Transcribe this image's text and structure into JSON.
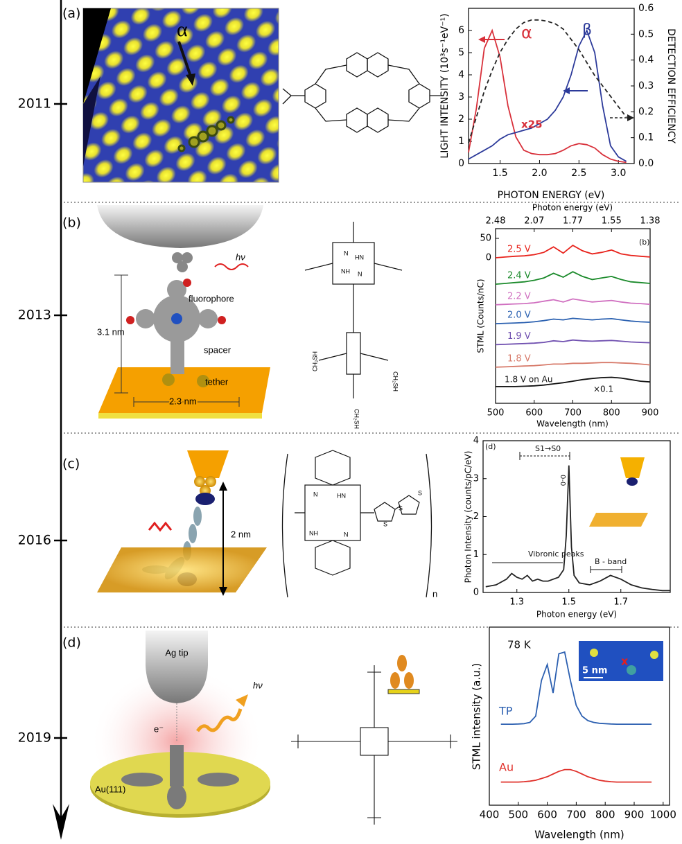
{
  "timeline": {
    "years": [
      "2011",
      "2013",
      "2016",
      "2019"
    ]
  },
  "panels": [
    {
      "label": "(a)",
      "texts": [
        "α"
      ]
    },
    {
      "label": "(b)",
      "texts": [
        "hν",
        "fluorophore",
        "spacer",
        "tether",
        "3.1 nm",
        "2.3 nm"
      ],
      "atoms": [
        "N",
        "HN",
        "NH",
        "N",
        "CH₂SH",
        "CH₂SH",
        "CH₂SH"
      ]
    },
    {
      "label": "(c)",
      "texts": [
        "2 nm",
        "n"
      ],
      "atoms": [
        "N",
        "HN",
        "NH",
        "N",
        "S",
        "S",
        "S"
      ]
    },
    {
      "label": "(d)",
      "texts": [
        "Ag tip",
        "e⁻",
        "hν",
        "Au(111)"
      ]
    }
  ],
  "chart_data": [
    {
      "type": "line",
      "xlabel": "PHOTON ENERGY (eV)",
      "ylabel": "LIGHT INTENSITY (10³s⁻¹eV⁻¹)",
      "y2label": "DETECTION EFFICIENCY",
      "x": [
        1.1,
        1.2,
        1.3,
        1.4,
        1.5,
        1.6,
        1.7,
        1.8,
        1.9,
        2.0,
        2.1,
        2.2,
        2.3,
        2.4,
        2.5,
        2.6,
        2.7,
        2.8,
        2.9,
        3.0,
        3.1
      ],
      "series": [
        {
          "name": "α",
          "color": "#d8303a",
          "values": [
            0.5,
            2.5,
            5.2,
            6.0,
            4.8,
            2.6,
            1.2,
            0.6,
            0.45,
            0.4,
            0.4,
            0.45,
            0.6,
            0.8,
            0.9,
            0.85,
            0.7,
            0.4,
            0.2,
            0.1,
            0.05
          ]
        },
        {
          "name": "β",
          "color": "#2c3a9a",
          "values": [
            0.2,
            0.4,
            0.6,
            0.8,
            1.1,
            1.3,
            1.4,
            1.5,
            1.6,
            1.8,
            2.0,
            2.4,
            3.0,
            4.0,
            5.3,
            6.0,
            5.0,
            2.6,
            0.8,
            0.3,
            0.1
          ]
        },
        {
          "color": "#222222",
          "style": "dashed",
          "axis": "y2",
          "values": [
            0.08,
            0.18,
            0.28,
            0.36,
            0.43,
            0.48,
            0.52,
            0.545,
            0.555,
            0.555,
            0.55,
            0.54,
            0.52,
            0.48,
            0.44,
            0.39,
            0.34,
            0.3,
            0.26,
            0.22,
            0.18
          ]
        }
      ],
      "annotations": [
        "x25"
      ],
      "xlim": [
        1.1,
        3.2
      ],
      "xticks": [
        1.5,
        {
          "value": 2,
          "label": "2.0"
        },
        2.5,
        {
          "value": 3,
          "label": "3.0"
        }
      ],
      "ylim": [
        0,
        7
      ],
      "yticks": [
        0,
        1,
        2,
        3,
        4,
        5,
        6
      ],
      "y2lim": [
        0,
        0.6
      ],
      "y2ticks": [
        {
          "value": 0,
          "label": "0.0"
        },
        0.1,
        0.2,
        0.3,
        0.4,
        0.5,
        0.6
      ]
    },
    {
      "type": "line",
      "xlabel": "Wavelength (nm)",
      "ylabel": "STML (Counts/nC)",
      "x2label": "Photon energy (eV)",
      "x": [
        500,
        525,
        550,
        575,
        600,
        625,
        650,
        675,
        700,
        725,
        750,
        775,
        800,
        825,
        850,
        875,
        900
      ],
      "series": [
        {
          "name": "2.5 V",
          "color": "#e8221b",
          "values": [
            0,
            2,
            4,
            5,
            8,
            14,
            28,
            12,
            32,
            18,
            10,
            14,
            20,
            10,
            6,
            4,
            2
          ]
        },
        {
          "name": "2.4 V",
          "color": "#1a8a2a",
          "values": [
            -68,
            -66,
            -64,
            -62,
            -58,
            -52,
            -40,
            -50,
            -36,
            -48,
            -56,
            -52,
            -48,
            -56,
            -62,
            -64,
            -66
          ]
        },
        {
          "name": "2.2 V",
          "color": "#d070c0",
          "values": [
            -121,
            -120,
            -119,
            -118,
            -116,
            -112,
            -108,
            -114,
            -106,
            -110,
            -114,
            -112,
            -110,
            -114,
            -117,
            -118,
            -120
          ]
        },
        {
          "name": "2.0 V",
          "color": "#2a60b0",
          "values": [
            -170,
            -169,
            -168,
            -167,
            -165,
            -162,
            -158,
            -160,
            -156,
            -158,
            -160,
            -158,
            -157,
            -160,
            -163,
            -165,
            -166
          ]
        },
        {
          "name": "1.9 V",
          "color": "#7050b0",
          "values": [
            -224,
            -223,
            -222,
            -221,
            -220,
            -218,
            -214,
            -216,
            -212,
            -214,
            -215,
            -214,
            -213,
            -215,
            -217,
            -218,
            -219
          ]
        },
        {
          "name": "1.8 V",
          "color": "#d77a6a",
          "values": [
            -282,
            -281,
            -280,
            -279,
            -278,
            -276,
            -274,
            -274,
            -272,
            -272,
            -271,
            -270,
            -270,
            -271,
            -272,
            -274,
            -276
          ]
        },
        {
          "color": "#111111",
          "values": [
            -332,
            -332,
            -332,
            -331,
            -330,
            -328,
            -325,
            -322,
            -318,
            -314,
            -311,
            -309,
            -308,
            -310,
            -314,
            -318,
            -320
          ]
        }
      ],
      "annotations": [
        "(b)",
        "×0.1",
        "1.8 V on Au"
      ],
      "xlim": [
        500,
        900
      ],
      "xticks": [
        500,
        600,
        700,
        800,
        900
      ],
      "x2ticks": [
        {
          "value": 500,
          "label": "2.48"
        },
        {
          "value": 600,
          "label": "2.07"
        },
        {
          "value": 700,
          "label": "1.77"
        },
        {
          "value": 800,
          "label": "1.55"
        },
        {
          "value": 900,
          "label": "1.38"
        }
      ],
      "ylim": [
        -375,
        75
      ],
      "yticks": [
        0,
        50
      ]
    },
    {
      "type": "line",
      "xlabel": "Photon energy (eV)",
      "ylabel": "Photon Intensity (counts/pC/eV)",
      "x": [
        1.18,
        1.22,
        1.26,
        1.28,
        1.3,
        1.32,
        1.34,
        1.36,
        1.38,
        1.4,
        1.42,
        1.44,
        1.46,
        1.48,
        1.49,
        1.5,
        1.51,
        1.52,
        1.54,
        1.58,
        1.62,
        1.66,
        1.7,
        1.74,
        1.78,
        1.82,
        1.86,
        1.89
      ],
      "series": [
        {
          "color": "#222222",
          "values": [
            0.15,
            0.2,
            0.35,
            0.5,
            0.4,
            0.35,
            0.45,
            0.3,
            0.35,
            0.3,
            0.3,
            0.35,
            0.4,
            0.6,
            1.5,
            3.35,
            1.2,
            0.45,
            0.25,
            0.2,
            0.3,
            0.45,
            0.35,
            0.2,
            0.12,
            0.08,
            0.05,
            0.05
          ]
        }
      ],
      "annotations": [
        "(d)",
        "S1→S0",
        "0-0",
        "Vibronic peaks",
        "B - band"
      ],
      "xlim": [
        1.17,
        1.89
      ],
      "xticks": [
        1.3,
        1.5,
        1.7
      ],
      "ylim": [
        0,
        4
      ],
      "yticks": [
        0,
        1,
        2,
        3,
        4
      ]
    },
    {
      "type": "line",
      "xlabel": "Wavelength (nm)",
      "ylabel": "STML intensity (a.u.)",
      "x": [
        440,
        460,
        480,
        500,
        520,
        540,
        560,
        580,
        600,
        620,
        640,
        660,
        680,
        700,
        720,
        740,
        760,
        780,
        800,
        820,
        840,
        860,
        880,
        900,
        920,
        940,
        960
      ],
      "series": [
        {
          "name": "TP",
          "color": "#2b5fb0",
          "values": [
            0.455,
            0.455,
            0.455,
            0.456,
            0.458,
            0.465,
            0.5,
            0.7,
            0.79,
            0.63,
            0.85,
            0.86,
            0.7,
            0.56,
            0.5,
            0.475,
            0.465,
            0.46,
            0.458,
            0.456,
            0.455,
            0.455,
            0.455,
            0.455,
            0.455,
            0.455,
            0.455
          ]
        },
        {
          "name": "Au",
          "color": "#e0302a",
          "values": [
            0.13,
            0.13,
            0.13,
            0.13,
            0.132,
            0.135,
            0.14,
            0.15,
            0.16,
            0.175,
            0.19,
            0.2,
            0.2,
            0.19,
            0.175,
            0.16,
            0.15,
            0.14,
            0.135,
            0.132,
            0.13,
            0.13,
            0.13,
            0.13,
            0.13,
            0.13,
            0.13
          ]
        }
      ],
      "annotations": [
        "78 K",
        "5 nm",
        "x"
      ],
      "xlim": [
        400,
        1022
      ],
      "xticks": [
        400,
        500,
        600,
        700,
        800,
        900,
        1000
      ],
      "ylim": [
        0,
        1
      ]
    }
  ]
}
